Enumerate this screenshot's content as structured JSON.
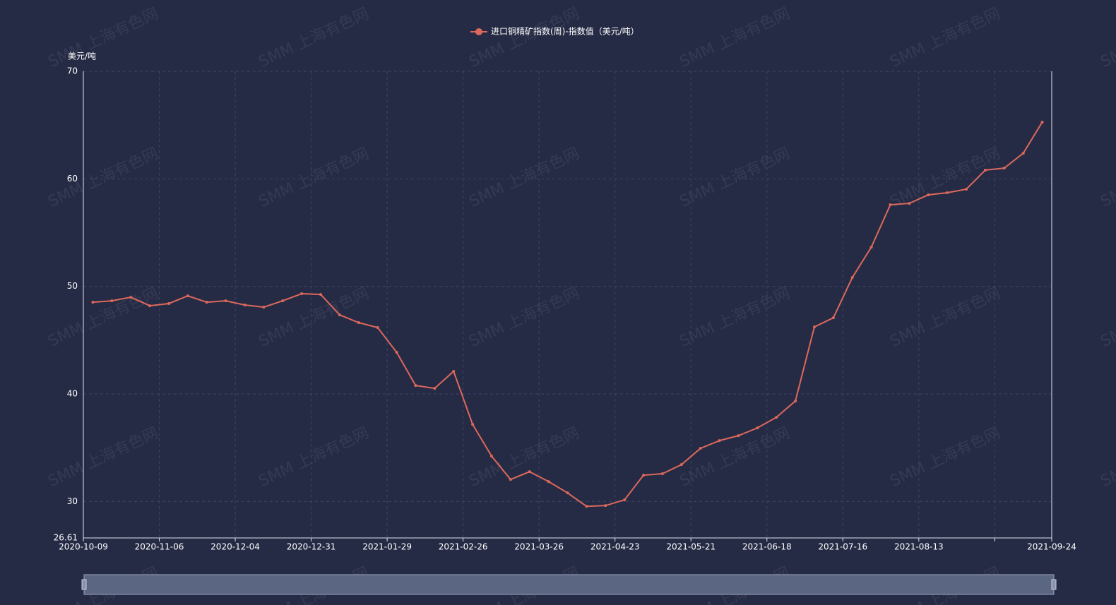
{
  "watermark": "SMM 上海有色网",
  "chart_data": {
    "type": "line",
    "legend_text": "进口铜精矿指数(周)-指数值（美元/吨）",
    "y_axis_label": "美元/吨",
    "categories": [
      "2020-10-09",
      null,
      null,
      null,
      "2020-11-06",
      null,
      null,
      null,
      "2020-12-04",
      null,
      null,
      null,
      "2020-12-31",
      null,
      null,
      null,
      "2021-01-29",
      null,
      null,
      null,
      "2021-02-26",
      null,
      null,
      null,
      "2021-03-26",
      null,
      null,
      null,
      "2021-04-23",
      null,
      null,
      null,
      "2021-05-21",
      null,
      null,
      null,
      "2021-06-18",
      null,
      null,
      null,
      "2021-07-16",
      null,
      null,
      null,
      "2021-08-13",
      null,
      null,
      null,
      null,
      null,
      "2021-09-24"
    ],
    "series": [
      {
        "name": "进口铜精矿指数(周)-指数值",
        "color": "#dc685c",
        "values": [
          48.53,
          48.66,
          48.99,
          48.2,
          48.4,
          49.12,
          48.53,
          48.66,
          48.27,
          48.07,
          48.66,
          49.32,
          49.25,
          47.35,
          46.63,
          46.17,
          43.87,
          40.78,
          40.52,
          42.1,
          37.17,
          34.22,
          32.05,
          32.77,
          31.85,
          30.8,
          29.55,
          29.62,
          30.15,
          32.44,
          32.58,
          33.43,
          34.94,
          35.66,
          36.12,
          36.84,
          37.83,
          39.34,
          46.23,
          47.08,
          50.83,
          53.65,
          57.59,
          57.72,
          58.51,
          58.71,
          59.04,
          60.81,
          61.0,
          62.38,
          65.27
        ]
      }
    ],
    "ylim": [
      26.61,
      70
    ],
    "yticks": [
      26.61,
      30,
      40,
      50,
      60,
      70
    ],
    "grid": true
  }
}
